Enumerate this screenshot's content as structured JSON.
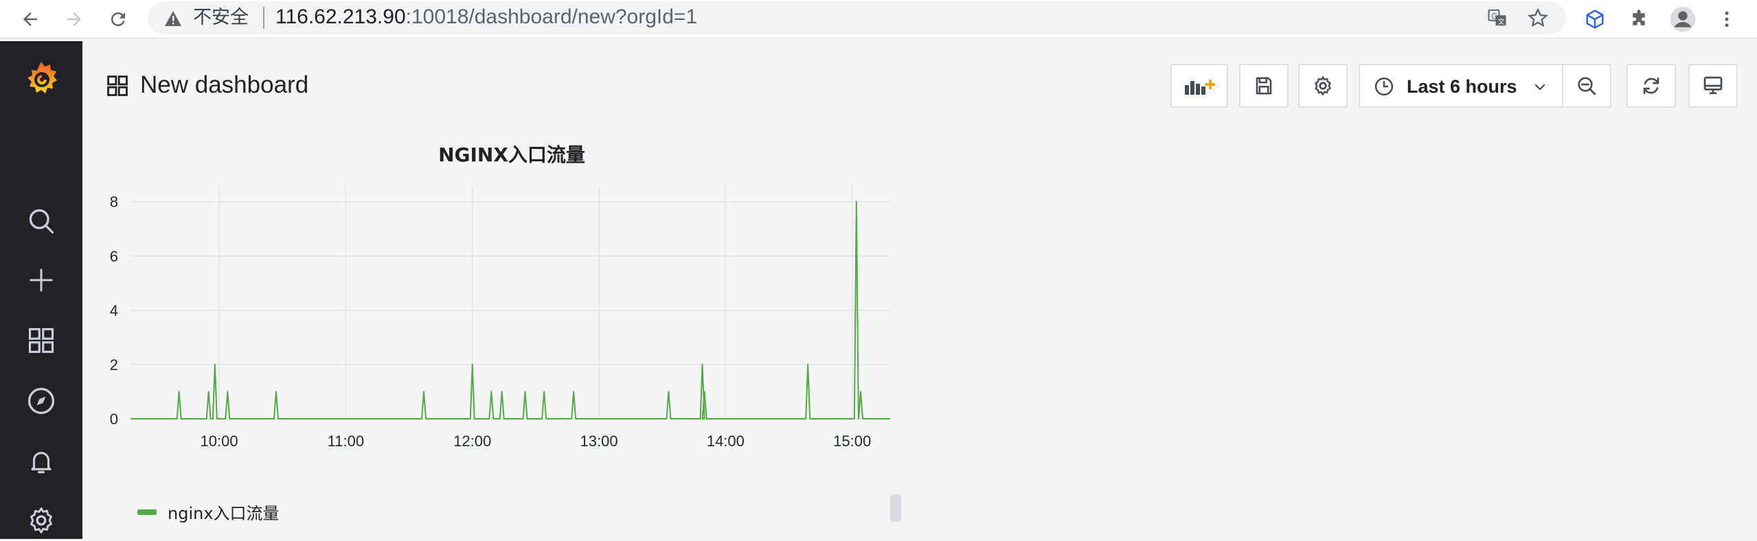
{
  "browser": {
    "security_label": "不安全",
    "url_host": "116.62.213.90",
    "url_path": ":10018/dashboard/new?orgId=1"
  },
  "header": {
    "title": "New dashboard",
    "time_range": "Last 6 hours"
  },
  "panel": {
    "title": "NGINX入口流量",
    "legend": "nginx入口流量",
    "series_color": "#56a64b"
  },
  "chart_data": {
    "type": "line",
    "title": "NGINX入口流量",
    "xlabel": "",
    "ylabel": "",
    "grid": true,
    "legend_position": "bottom-left",
    "xlim": [
      "09:18",
      "15:18"
    ],
    "ylim": [
      0,
      8.6
    ],
    "x_ticks": [
      "10:00",
      "11:00",
      "12:00",
      "13:00",
      "14:00",
      "15:00"
    ],
    "y_ticks": [
      "0",
      "2",
      "4",
      "6",
      "8"
    ],
    "series": [
      {
        "name": "nginx入口流量",
        "spikes": [
          {
            "x": "09:41",
            "y": 1
          },
          {
            "x": "09:55",
            "y": 1
          },
          {
            "x": "09:58",
            "y": 2
          },
          {
            "x": "10:04",
            "y": 1
          },
          {
            "x": "10:27",
            "y": 1
          },
          {
            "x": "11:37",
            "y": 1
          },
          {
            "x": "12:00",
            "y": 2
          },
          {
            "x": "12:09",
            "y": 1
          },
          {
            "x": "12:14",
            "y": 1
          },
          {
            "x": "12:25",
            "y": 1
          },
          {
            "x": "12:34",
            "y": 1
          },
          {
            "x": "12:48",
            "y": 1
          },
          {
            "x": "13:33",
            "y": 1
          },
          {
            "x": "13:49",
            "y": 2
          },
          {
            "x": "13:50",
            "y": 1
          },
          {
            "x": "14:39",
            "y": 2
          },
          {
            "x": "15:02",
            "y": 8
          },
          {
            "x": "15:04",
            "y": 1
          }
        ]
      }
    ]
  }
}
